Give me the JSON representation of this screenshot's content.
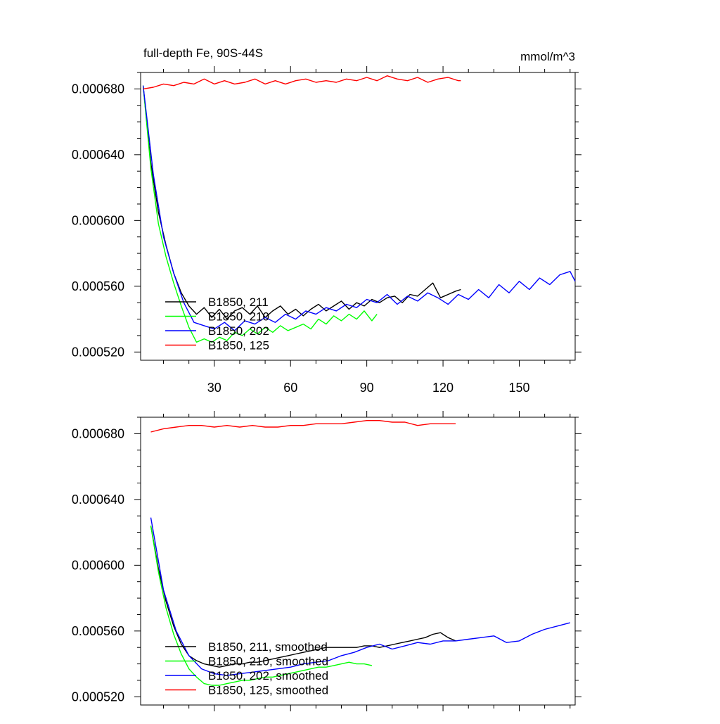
{
  "chart_data": [
    {
      "type": "line",
      "title": "full-depth Fe, 90S-44S",
      "units": "mmol/m^3",
      "xlabel": "",
      "ylabel": "",
      "xlim": [
        1,
        172
      ],
      "ylim": [
        0.000515,
        0.00069
      ],
      "xticks": [
        30,
        60,
        90,
        120,
        150
      ],
      "xtick_labels": [
        "30",
        "60",
        "90",
        "120",
        "150"
      ],
      "yticks": [
        0.00052,
        0.00056,
        0.0006,
        0.00064,
        0.00068
      ],
      "ytick_labels": [
        "0.000520",
        "0.000560",
        "0.000600",
        "0.000640",
        "0.000680"
      ],
      "legend_position": "lower-left",
      "series": [
        {
          "name": "B1850, 211",
          "color": "#000000",
          "x": [
            2,
            5,
            8,
            11,
            14,
            17,
            20,
            23,
            26,
            29,
            32,
            35,
            38,
            41,
            44,
            47,
            50,
            53,
            56,
            59,
            62,
            65,
            68,
            71,
            74,
            77,
            80,
            83,
            86,
            89,
            92,
            95,
            98,
            101,
            104,
            107,
            110,
            113,
            116,
            119,
            122,
            125,
            127
          ],
          "y": [
            0.000682,
            0.000635,
            0.000605,
            0.000585,
            0.000568,
            0.000556,
            0.000548,
            0.000543,
            0.000547,
            0.000541,
            0.000546,
            0.00054,
            0.000545,
            0.000547,
            0.000543,
            0.000548,
            0.000541,
            0.000545,
            0.000548,
            0.000543,
            0.000546,
            0.000542,
            0.000546,
            0.000549,
            0.000545,
            0.000548,
            0.000551,
            0.000546,
            0.00055,
            0.000548,
            0.000552,
            0.00055,
            0.000553,
            0.000554,
            0.00055,
            0.000555,
            0.000554,
            0.000558,
            0.000562,
            0.000553,
            0.000555,
            0.000557,
            0.000558
          ]
        },
        {
          "name": "B1850, 210",
          "color": "#00ff00",
          "x": [
            2,
            5,
            8,
            11,
            14,
            17,
            20,
            23,
            26,
            29,
            32,
            35,
            38,
            41,
            44,
            47,
            50,
            53,
            56,
            59,
            62,
            65,
            68,
            71,
            74,
            77,
            80,
            83,
            86,
            89,
            92,
            94
          ],
          "y": [
            0.000682,
            0.000632,
            0.000598,
            0.000578,
            0.000562,
            0.000548,
            0.000535,
            0.000526,
            0.000528,
            0.000526,
            0.000529,
            0.000527,
            0.000532,
            0.00053,
            0.000534,
            0.000531,
            0.000535,
            0.000532,
            0.000536,
            0.000533,
            0.000535,
            0.000537,
            0.000534,
            0.00054,
            0.000537,
            0.000542,
            0.000539,
            0.000543,
            0.00054,
            0.000545,
            0.000539,
            0.000543
          ]
        },
        {
          "name": "B1850, 202",
          "color": "#0000ff",
          "x": [
            2,
            6,
            10,
            14,
            18,
            22,
            26,
            30,
            34,
            38,
            42,
            46,
            50,
            54,
            58,
            62,
            66,
            70,
            74,
            78,
            82,
            86,
            90,
            94,
            98,
            102,
            106,
            110,
            114,
            118,
            122,
            126,
            130,
            134,
            138,
            142,
            146,
            150,
            154,
            158,
            162,
            166,
            170,
            172
          ],
          "y": [
            0.000682,
            0.000628,
            0.00059,
            0.000568,
            0.00055,
            0.000538,
            0.000536,
            0.000534,
            0.000538,
            0.000533,
            0.000539,
            0.000537,
            0.000541,
            0.000538,
            0.000543,
            0.00054,
            0.000545,
            0.000543,
            0.000547,
            0.000545,
            0.000549,
            0.000547,
            0.000552,
            0.00055,
            0.000555,
            0.000549,
            0.000554,
            0.000551,
            0.000556,
            0.000553,
            0.000549,
            0.000555,
            0.000552,
            0.000558,
            0.000553,
            0.000561,
            0.000556,
            0.000563,
            0.000558,
            0.000565,
            0.000561,
            0.000567,
            0.000569,
            0.000563
          ]
        },
        {
          "name": "B1850, 125",
          "color": "#ff0000",
          "x": [
            2,
            6,
            10,
            14,
            18,
            22,
            26,
            30,
            34,
            38,
            42,
            46,
            50,
            54,
            58,
            62,
            66,
            70,
            74,
            78,
            82,
            86,
            90,
            94,
            98,
            102,
            106,
            110,
            114,
            118,
            122,
            126,
            127
          ],
          "y": [
            0.00068,
            0.000681,
            0.000683,
            0.000682,
            0.000684,
            0.000683,
            0.000686,
            0.000683,
            0.000685,
            0.000683,
            0.000684,
            0.000686,
            0.000683,
            0.000685,
            0.000683,
            0.000685,
            0.000686,
            0.000684,
            0.000685,
            0.000684,
            0.000686,
            0.000685,
            0.000687,
            0.000685,
            0.000688,
            0.000686,
            0.000685,
            0.000687,
            0.000684,
            0.000686,
            0.000687,
            0.000685,
            0.000685
          ]
        }
      ]
    },
    {
      "type": "line",
      "title": "",
      "units": "",
      "xlabel": "",
      "ylabel": "",
      "xlim": [
        1,
        172
      ],
      "ylim": [
        0.000515,
        0.00069
      ],
      "xticks": [
        30,
        60,
        90,
        120,
        150
      ],
      "xtick_labels": [],
      "yticks": [
        0.00052,
        0.00056,
        0.0006,
        0.00064,
        0.00068
      ],
      "ytick_labels": [
        "0.000520",
        "0.000560",
        "0.000600",
        "0.000640",
        "0.000680"
      ],
      "legend_position": "lower-left",
      "series": [
        {
          "name": "B1850, 211, smoothed",
          "color": "#000000",
          "x": [
            5,
            8,
            11,
            14,
            17,
            20,
            23,
            26,
            29,
            32,
            35,
            38,
            41,
            44,
            47,
            50,
            53,
            56,
            59,
            62,
            65,
            68,
            71,
            74,
            77,
            80,
            83,
            86,
            89,
            92,
            95,
            98,
            101,
            104,
            107,
            110,
            113,
            116,
            119,
            122,
            125
          ],
          "y": [
            0.000624,
            0.000598,
            0.000578,
            0.000563,
            0.000552,
            0.000545,
            0.000542,
            0.00054,
            0.000539,
            0.000538,
            0.000539,
            0.00054,
            0.00054,
            0.000541,
            0.000541,
            0.000542,
            0.000543,
            0.000544,
            0.000545,
            0.000546,
            0.000547,
            0.000548,
            0.000549,
            0.00055,
            0.00055,
            0.00055,
            0.00055,
            0.00055,
            0.000551,
            0.000551,
            0.00055,
            0.000551,
            0.000552,
            0.000553,
            0.000554,
            0.000555,
            0.000556,
            0.000558,
            0.000559,
            0.000556,
            0.000554
          ]
        },
        {
          "name": "B1850, 210, smoothed",
          "color": "#00ff00",
          "x": [
            5,
            8,
            11,
            14,
            17,
            20,
            23,
            26,
            29,
            32,
            35,
            38,
            41,
            44,
            47,
            50,
            53,
            56,
            59,
            62,
            65,
            68,
            71,
            74,
            77,
            80,
            83,
            86,
            89,
            92
          ],
          "y": [
            0.000624,
            0.000596,
            0.000574,
            0.000558,
            0.000546,
            0.000537,
            0.000532,
            0.000528,
            0.000527,
            0.000527,
            0.000528,
            0.000529,
            0.00053,
            0.00053,
            0.000531,
            0.000532,
            0.000532,
            0.000533,
            0.000534,
            0.000535,
            0.000536,
            0.000537,
            0.000538,
            0.000538,
            0.000539,
            0.00054,
            0.000541,
            0.00054,
            0.00054,
            0.000539
          ]
        },
        {
          "name": "B1850, 202, smoothed",
          "color": "#0000ff",
          "x": [
            5,
            10,
            15,
            20,
            25,
            30,
            35,
            40,
            45,
            50,
            55,
            60,
            65,
            70,
            75,
            80,
            85,
            90,
            95,
            100,
            105,
            110,
            115,
            120,
            125,
            130,
            135,
            140,
            145,
            150,
            155,
            160,
            165,
            170
          ],
          "y": [
            0.000629,
            0.000585,
            0.00056,
            0.000545,
            0.000537,
            0.000534,
            0.000533,
            0.000534,
            0.000535,
            0.000536,
            0.000537,
            0.000538,
            0.00054,
            0.000541,
            0.000542,
            0.000545,
            0.000547,
            0.00055,
            0.000552,
            0.000549,
            0.000551,
            0.000553,
            0.000552,
            0.000554,
            0.000554,
            0.000555,
            0.000556,
            0.000557,
            0.000553,
            0.000554,
            0.000558,
            0.000561,
            0.000563,
            0.000565
          ]
        },
        {
          "name": "B1850, 125, smoothed",
          "color": "#ff0000",
          "x": [
            5,
            10,
            15,
            20,
            25,
            30,
            35,
            40,
            45,
            50,
            55,
            60,
            65,
            70,
            75,
            80,
            85,
            90,
            95,
            100,
            105,
            110,
            115,
            120,
            125
          ],
          "y": [
            0.000681,
            0.000683,
            0.000684,
            0.000685,
            0.000685,
            0.000684,
            0.000685,
            0.000684,
            0.000685,
            0.000684,
            0.000684,
            0.000685,
            0.000685,
            0.000686,
            0.000686,
            0.000686,
            0.000687,
            0.000688,
            0.000688,
            0.000687,
            0.000687,
            0.000685,
            0.000686,
            0.000686,
            0.000686
          ]
        }
      ]
    }
  ]
}
